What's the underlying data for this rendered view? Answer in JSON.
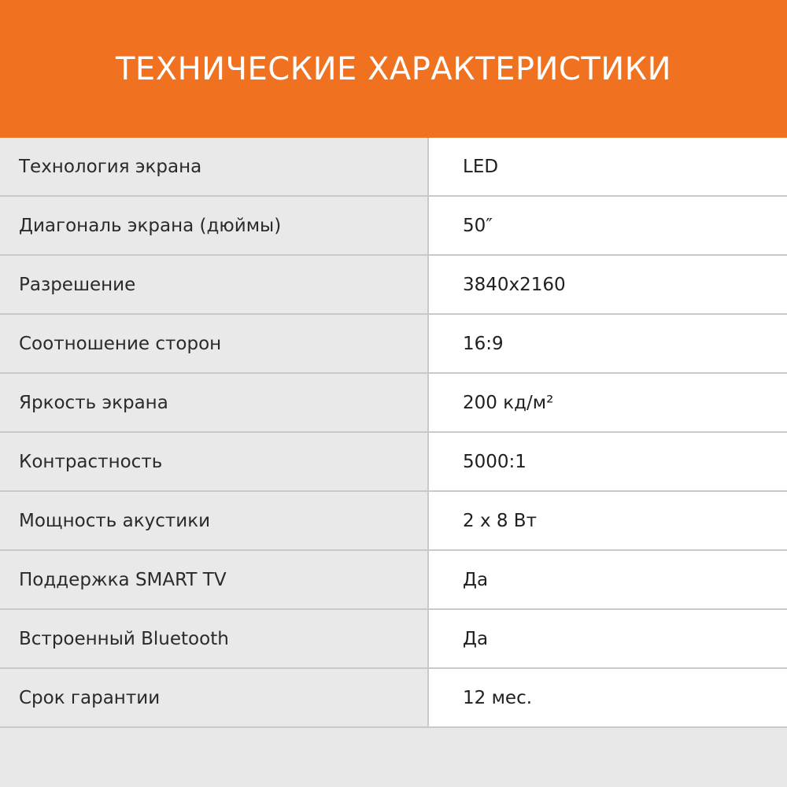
{
  "header": {
    "title": "ТЕХНИЧЕСКИЕ ХАРАКТЕРИСТИКИ",
    "color": "#f07221"
  },
  "specs": [
    {
      "label": "Технология экрана",
      "value": "LED"
    },
    {
      "label": "Диагональ экрана (дюймы)",
      "value": "50″"
    },
    {
      "label": "Разрешение",
      "value": "3840x2160"
    },
    {
      "label": "Соотношение сторон",
      "value": "16:9"
    },
    {
      "label": "Яркость экрана",
      "value": "200 кд/м²"
    },
    {
      "label": "Контрастность",
      "value": "5000:1"
    },
    {
      "label": "Мощность акустики",
      "value": "2 x 8 Вт"
    },
    {
      "label": "Поддержка SMART TV",
      "value": "Да"
    },
    {
      "label": "Встроенный Bluetooth",
      "value": "Да"
    },
    {
      "label": "Срок гарантии",
      "value": "12 мес."
    }
  ]
}
